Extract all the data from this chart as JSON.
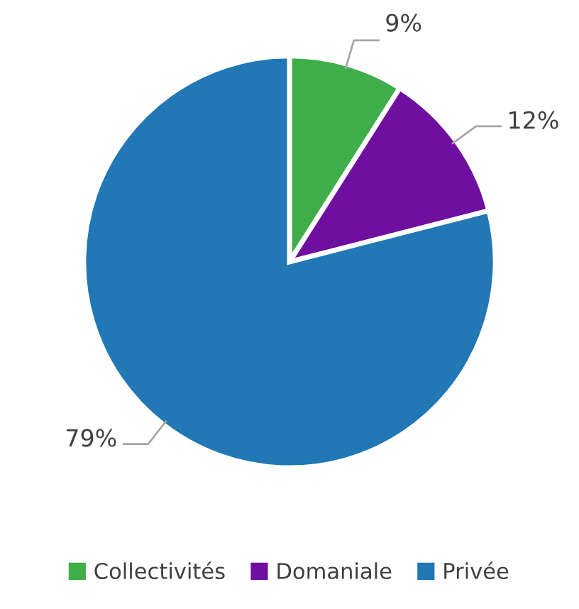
{
  "chart_data": {
    "type": "pie",
    "categories": [
      "Collectivités",
      "Domaniale",
      "Privée"
    ],
    "values": [
      9,
      12,
      79
    ],
    "value_labels": [
      "9%",
      "12%",
      "79%"
    ],
    "colors": [
      "#3fae49",
      "#6e0fa0",
      "#2277b5"
    ],
    "legend": "bottom"
  }
}
